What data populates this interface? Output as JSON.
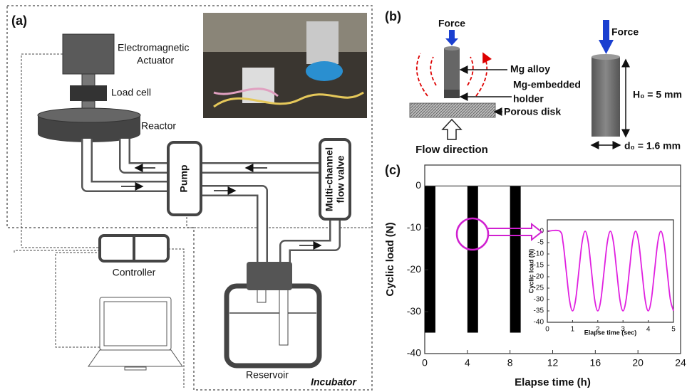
{
  "panel_a": {
    "label": "(a)",
    "actuator": [
      "Electromagnetic",
      "Actuator"
    ],
    "load_cell": "Load cell",
    "reactor": "Reactor",
    "pump": "Pump",
    "valve": [
      "Multi-channel",
      "flow valve"
    ],
    "controller": "Controller",
    "reservoir": "Reservoir",
    "incubator": "Incubator"
  },
  "panel_b": {
    "label": "(b)",
    "force_left": "Force",
    "mg_alloy": "Mg alloy",
    "holder": [
      "Mg-embedded",
      "holder"
    ],
    "porous_disk": "Porous disk",
    "flow_direction": "Flow direction",
    "force_right": "Force",
    "height": "H₀ = 5 mm",
    "diameter": "d₀ = 1.6 mm"
  },
  "panel_c_label": "(c)",
  "chart_data": [
    {
      "type": "bar",
      "xlabel": "Elapse time (h)",
      "ylabel": "Cyclic load (N)",
      "x_start": [
        0,
        4,
        8
      ],
      "x_end": [
        1,
        5,
        9
      ],
      "values": [
        -35,
        -35,
        -35
      ],
      "color": "#000000",
      "xlim": [
        0,
        24
      ],
      "xticks": [
        0,
        4,
        8,
        12,
        16,
        20,
        24
      ],
      "ylim": [
        -40,
        5
      ],
      "yticks": [
        0,
        -10,
        -20,
        -30,
        -40
      ],
      "zero_line": true
    },
    {
      "type": "line",
      "xlabel": "Elapse time (sec)",
      "ylabel": "Cyclic load (N)",
      "x": [
        0,
        0.5,
        0.625,
        0.75,
        0.875,
        1,
        1.125,
        1.25,
        1.375,
        1.5,
        1.625,
        1.75,
        1.875,
        2,
        2.125,
        2.25,
        2.375,
        2.5,
        2.625,
        2.75,
        2.875,
        3,
        3.125,
        3.25,
        3.375,
        3.5,
        3.625,
        3.75,
        3.875,
        4,
        4.125,
        4.25,
        4.375,
        4.5,
        4.625,
        4.75,
        4.875,
        5
      ],
      "values": [
        0,
        0,
        -5.1,
        -17.5,
        -29.9,
        -35,
        -29.9,
        -17.5,
        -5.1,
        0,
        -5.1,
        -17.5,
        -29.9,
        -35,
        -29.9,
        -17.5,
        -5.1,
        0,
        -5.1,
        -17.5,
        -29.9,
        -35,
        -29.9,
        -17.5,
        -5.1,
        0,
        -5.1,
        -17.5,
        -29.9,
        -35,
        -29.9,
        -17.5,
        -5.1,
        0,
        -5.1,
        -17.5,
        -29.9,
        -35
      ],
      "color": "#e020e0",
      "xlim": [
        0,
        5
      ],
      "xticks": [
        0,
        1,
        2,
        3,
        4,
        5
      ],
      "ylim": [
        -40,
        5
      ],
      "yticks": [
        0,
        -5,
        -10,
        -15,
        -20,
        -25,
        -30,
        -35,
        -40
      ]
    }
  ]
}
